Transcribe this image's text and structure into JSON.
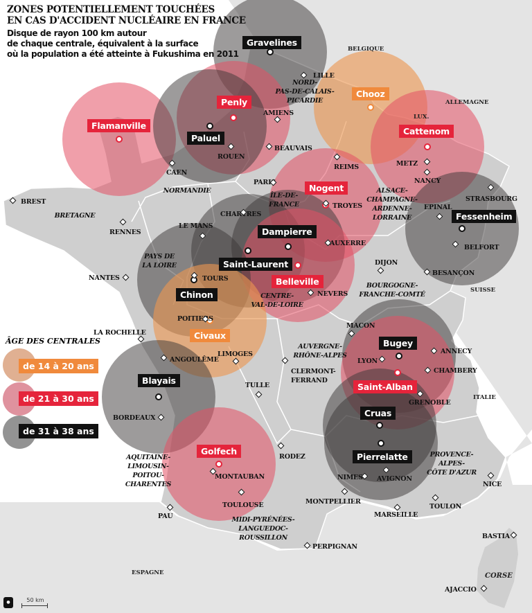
{
  "title": [
    "ZONES POTENTIELLEMENT TOUCHÉES",
    "EN CAS D'ACCIDENT NUCLÉAIRE EN FRANCE"
  ],
  "subtitle": [
    "Disque de rayon 100 km autour",
    "de chaque centrale, équivalent à la surface",
    "où la population a été atteinte à Fukushima en 2011"
  ],
  "colors": {
    "age_14_20": "#f08a3c",
    "age_21_30": "#e5243b",
    "age_31_38": "#111111",
    "land": "#cfcfcf",
    "neighbors": "#e4e4e4"
  },
  "legend": {
    "title": "ÂGE DES CENTRALES",
    "items": [
      {
        "label": "de 14 à 20 ans",
        "group": "age_14_20"
      },
      {
        "label": "de 21 à 30 ans",
        "group": "age_21_30"
      },
      {
        "label": "de 31 à 38 ans",
        "group": "age_31_38"
      }
    ]
  },
  "plants": [
    {
      "name": "Gravelines",
      "group": "age_31_38"
    },
    {
      "name": "Flamanville",
      "group": "age_21_30"
    },
    {
      "name": "Penly",
      "group": "age_21_30"
    },
    {
      "name": "Paluel",
      "group": "age_31_38"
    },
    {
      "name": "Chooz",
      "group": "age_14_20"
    },
    {
      "name": "Cattenom",
      "group": "age_21_30"
    },
    {
      "name": "Nogent",
      "group": "age_21_30"
    },
    {
      "name": "Fessenheim",
      "group": "age_31_38"
    },
    {
      "name": "Dampierre",
      "group": "age_31_38"
    },
    {
      "name": "Saint-Laurent",
      "group": "age_31_38"
    },
    {
      "name": "Belleville",
      "group": "age_21_30"
    },
    {
      "name": "Chinon",
      "group": "age_31_38"
    },
    {
      "name": "Civaux",
      "group": "age_14_20"
    },
    {
      "name": "Bugey",
      "group": "age_31_38"
    },
    {
      "name": "Saint-Alban",
      "group": "age_21_30"
    },
    {
      "name": "Cruas",
      "group": "age_31_38"
    },
    {
      "name": "Pierrelatte",
      "group": "age_31_38"
    },
    {
      "name": "Blayais",
      "group": "age_31_38"
    },
    {
      "name": "Golfech",
      "group": "age_21_30"
    }
  ],
  "cities": [
    "LILLE",
    "AMIENS",
    "ROUEN",
    "BEAUVAIS",
    "CAEN",
    "PARIS",
    "REIMS",
    "METZ",
    "NANCY",
    "STRASBOURG",
    "EPINAL",
    "BELFORT",
    "TROYES",
    "AUXERRE",
    "DIJON",
    "BESANÇON",
    "NEVERS",
    "TOURS",
    "LE MANS",
    "CHARTRES",
    "RENNES",
    "BREST",
    "NANTES",
    "POITIERS",
    "LA ROCHELLE",
    "LIMOGES",
    "ANGOULÊME",
    "TULLE",
    "CLERMONT-",
    "FERRAND",
    "MACON",
    "LYON",
    "ANNECY",
    "CHAMBERY",
    "GRENOBLE",
    "BORDEAUX",
    "RODEZ",
    "MONTAUBAN",
    "TOULOUSE",
    "NIMES",
    "AVIGNON",
    "MONTPELLIER",
    "MARSEILLE",
    "TOULON",
    "NICE",
    "PAU",
    "PERPIGNAN",
    "BASTIA",
    "AJACCIO"
  ],
  "countries": [
    "BELGIQUE",
    "ALLEMAGNE",
    "LUX.",
    "SUISSE",
    "ITALIE",
    "ESPAGNE",
    "CORSE"
  ],
  "regions": [
    [
      "NORD-",
      "PAS-DE-CALAIS-",
      "PICARDIE"
    ],
    [
      "NORMANDIE"
    ],
    [
      "BRETAGNE"
    ],
    [
      "ÎLE-DE-",
      "FRANCE"
    ],
    [
      "ALSACE-",
      "CHAMPAGNE-",
      "ARDENNE-",
      "LORRAINE"
    ],
    [
      "PAYS DE",
      "LA LOIRE"
    ],
    [
      "CENTRE-",
      "VAL-DE-LOIRE"
    ],
    [
      "BOURGOGNE-",
      "FRANCHE-COMTÉ"
    ],
    [
      "AUVERGNE-",
      "RHÔNE-ALPES"
    ],
    [
      "AQUITAINE-",
      "LIMOUSIN-",
      "POITOU-",
      "CHARENTES"
    ],
    [
      "MIDI-PYRÉNÉES-",
      "LANGUEDOC-",
      "ROUSSILLON"
    ],
    [
      "PROVENCE-",
      "ALPES-",
      "CÔTE D'AZUR"
    ]
  ],
  "scale": "50 km",
  "logo": "AJG"
}
